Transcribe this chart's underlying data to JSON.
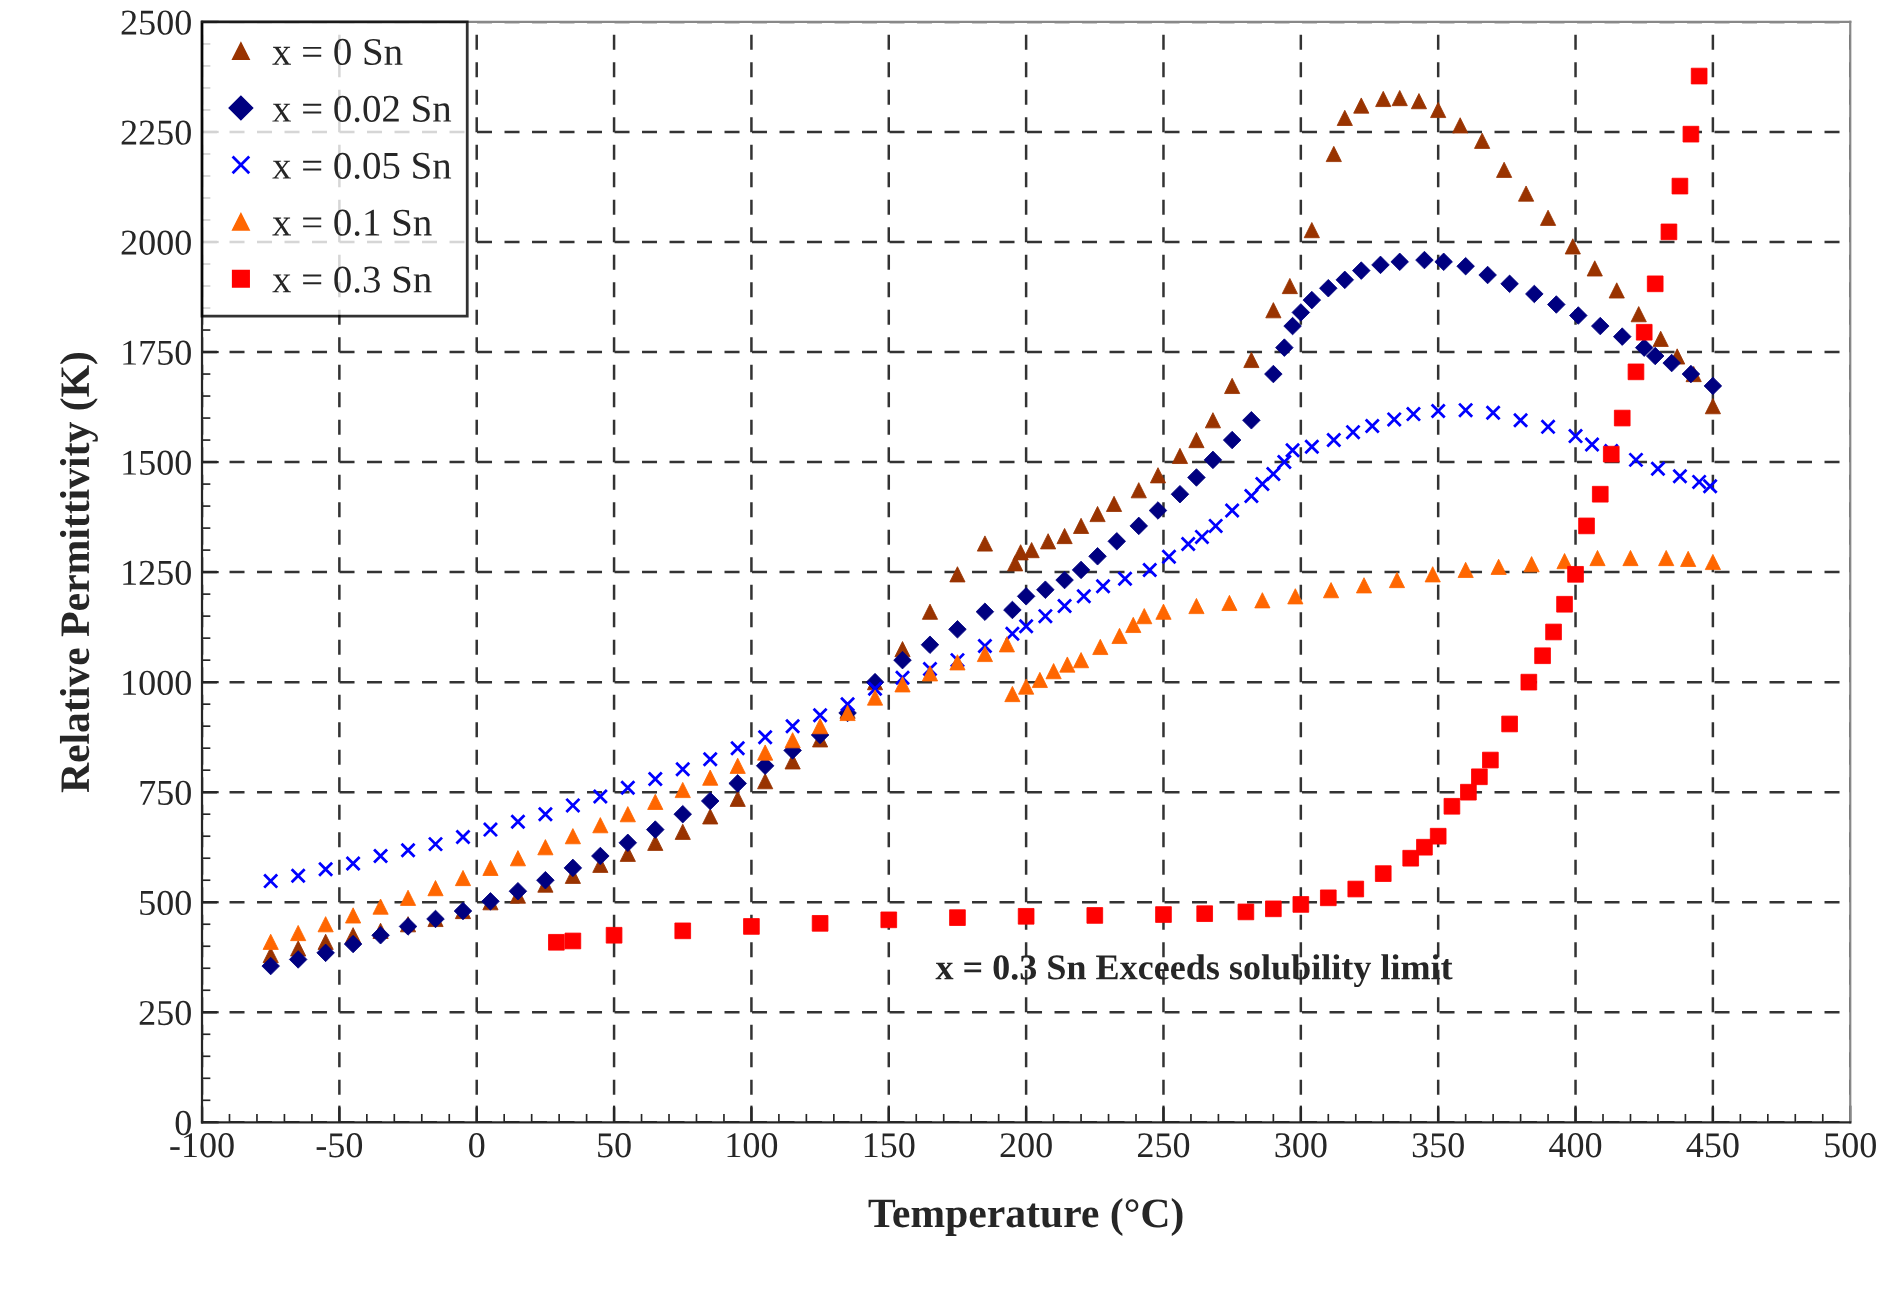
{
  "chart_data": {
    "type": "scatter",
    "xlabel": "Temperature (°C)",
    "ylabel": "Relative Permittivity (K)",
    "xlim": [
      -100,
      500
    ],
    "xticks": [
      -100,
      -50,
      0,
      50,
      100,
      150,
      200,
      250,
      300,
      350,
      400,
      450,
      500
    ],
    "ylim": [
      0,
      2500
    ],
    "yticks": [
      0,
      250,
      500,
      750,
      1000,
      1250,
      1500,
      1750,
      2000,
      2250,
      2500
    ],
    "grid": true,
    "legend": "top left",
    "annotations": [
      "x = 0.3 Sn Exceeds solubility limit"
    ],
    "series": [
      {
        "name": "x = 0 Sn",
        "color": "#993300",
        "marker": "triangle",
        "x": [
          -75,
          -65,
          -55,
          -45,
          -35,
          -25,
          -15,
          -5,
          5,
          15,
          25,
          35,
          45,
          55,
          65,
          75,
          85,
          95,
          105,
          115,
          125,
          135,
          145,
          155,
          165,
          175,
          185,
          196,
          198,
          202,
          208,
          214,
          220,
          226,
          232,
          241,
          248,
          256,
          262,
          268,
          275,
          282,
          290,
          296,
          304,
          312,
          316,
          322,
          330,
          336,
          343,
          350,
          358,
          366,
          374,
          382,
          390,
          399,
          407,
          415,
          423,
          431,
          437,
          443,
          450
        ],
        "values": [
          380,
          395,
          410,
          425,
          435,
          450,
          462,
          480,
          500,
          515,
          540,
          560,
          585,
          610,
          635,
          660,
          695,
          735,
          775,
          820,
          870,
          935,
          1000,
          1075,
          1160,
          1245,
          1315,
          1270,
          1295,
          1300,
          1320,
          1332,
          1355,
          1382,
          1405,
          1436,
          1470,
          1514,
          1550,
          1595,
          1673,
          1732,
          1845,
          1900,
          2027,
          2200,
          2282,
          2310,
          2325,
          2327,
          2320,
          2300,
          2265,
          2230,
          2164,
          2110,
          2055,
          1990,
          1940,
          1890,
          1836,
          1780,
          1740,
          1700,
          1627
        ]
      },
      {
        "name": "x = 0.02 Sn",
        "color": "#000080",
        "marker": "diamond",
        "x": [
          -75,
          -65,
          -55,
          -45,
          -35,
          -25,
          -15,
          -5,
          5,
          15,
          25,
          35,
          45,
          55,
          65,
          75,
          85,
          95,
          105,
          115,
          125,
          135,
          145,
          155,
          165,
          175,
          185,
          195,
          200,
          207,
          214,
          220,
          226,
          233,
          241,
          248,
          256,
          262,
          268,
          275,
          282,
          290,
          294,
          297,
          300,
          304,
          310,
          316,
          322,
          329,
          336,
          345,
          352,
          360,
          368,
          376,
          385,
          393,
          401,
          409,
          417,
          425,
          429,
          435,
          442,
          450
        ],
        "values": [
          355,
          370,
          385,
          405,
          425,
          445,
          462,
          480,
          502,
          525,
          550,
          578,
          605,
          635,
          665,
          700,
          730,
          770,
          810,
          845,
          880,
          930,
          1000,
          1050,
          1085,
          1120,
          1160,
          1164,
          1195,
          1210,
          1232,
          1255,
          1286,
          1320,
          1355,
          1390,
          1427,
          1465,
          1505,
          1550,
          1595,
          1700,
          1760,
          1809,
          1840,
          1868,
          1895,
          1914,
          1935,
          1948,
          1955,
          1959,
          1955,
          1945,
          1925,
          1905,
          1882,
          1858,
          1833,
          1809,
          1785,
          1760,
          1741,
          1725,
          1700,
          1673
        ]
      },
      {
        "name": "x = 0.05 Sn",
        "color": "#0000ff",
        "marker": "cross",
        "x": [
          -75,
          -65,
          -55,
          -45,
          -35,
          -25,
          -15,
          -5,
          5,
          15,
          25,
          35,
          45,
          55,
          65,
          75,
          85,
          95,
          105,
          115,
          125,
          135,
          145,
          155,
          165,
          175,
          185,
          195,
          200,
          207,
          214,
          221,
          228,
          236,
          245,
          252,
          259,
          264,
          269,
          275,
          282,
          286,
          290,
          294,
          297,
          304,
          312,
          319,
          326,
          334,
          341,
          350,
          360,
          370,
          380,
          390,
          400,
          406,
          413,
          422,
          430,
          438,
          445,
          449
        ],
        "values": [
          548,
          560,
          575,
          588,
          605,
          618,
          632,
          648,
          665,
          683,
          700,
          720,
          740,
          760,
          780,
          802,
          825,
          850,
          875,
          900,
          925,
          950,
          985,
          1010,
          1030,
          1050,
          1082,
          1110,
          1127,
          1150,
          1173,
          1195,
          1218,
          1235,
          1255,
          1285,
          1314,
          1330,
          1355,
          1390,
          1423,
          1450,
          1473,
          1500,
          1527,
          1535,
          1550,
          1568,
          1582,
          1597,
          1609,
          1616,
          1618,
          1612,
          1595,
          1580,
          1559,
          1540,
          1525,
          1505,
          1485,
          1468,
          1455,
          1445
        ]
      },
      {
        "name": "x = 0.1 Sn",
        "color": "#ff6600",
        "marker": "triangle",
        "x": [
          -75,
          -65,
          -55,
          -45,
          -35,
          -25,
          -15,
          -5,
          5,
          15,
          25,
          35,
          45,
          55,
          65,
          75,
          85,
          95,
          105,
          115,
          125,
          135,
          145,
          155,
          165,
          175,
          185,
          193,
          195,
          200,
          205,
          210,
          215,
          220,
          227,
          234,
          239,
          243,
          250,
          262,
          274,
          286,
          298,
          311,
          323,
          335,
          348,
          360,
          372,
          384,
          396,
          408,
          420,
          433,
          441,
          450
        ],
        "values": [
          410,
          430,
          450,
          470,
          490,
          510,
          532,
          555,
          578,
          600,
          625,
          650,
          675,
          700,
          728,
          755,
          783,
          810,
          840,
          868,
          900,
          930,
          965,
          995,
          1020,
          1045,
          1064,
          1086,
          973,
          990,
          1005,
          1025,
          1040,
          1050,
          1080,
          1105,
          1130,
          1150,
          1160,
          1173,
          1180,
          1186,
          1195,
          1209,
          1220,
          1232,
          1245,
          1255,
          1262,
          1268,
          1275,
          1282,
          1282,
          1282,
          1280,
          1273
        ]
      },
      {
        "name": "x = 0.3 Sn",
        "color": "#ff0000",
        "marker": "square",
        "x": [
          29,
          35,
          50,
          75,
          100,
          125,
          150,
          175,
          200,
          225,
          250,
          265,
          280,
          290,
          300,
          310,
          320,
          330,
          340,
          345,
          350,
          355,
          361,
          365,
          369,
          376,
          383,
          388,
          392,
          396,
          400,
          404,
          409,
          413,
          417,
          422,
          425,
          429,
          434,
          438,
          442,
          445
        ],
        "values": [
          409,
          412,
          425,
          435,
          445,
          452,
          460,
          465,
          468,
          470,
          472,
          474,
          478,
          485,
          495,
          510,
          530,
          565,
          600,
          625,
          650,
          718,
          750,
          785,
          823,
          905,
          1000,
          1060,
          1114,
          1177,
          1245,
          1355,
          1427,
          1518,
          1600,
          1705,
          1795,
          1905,
          2023,
          2127,
          2245,
          2377
        ]
      }
    ]
  }
}
